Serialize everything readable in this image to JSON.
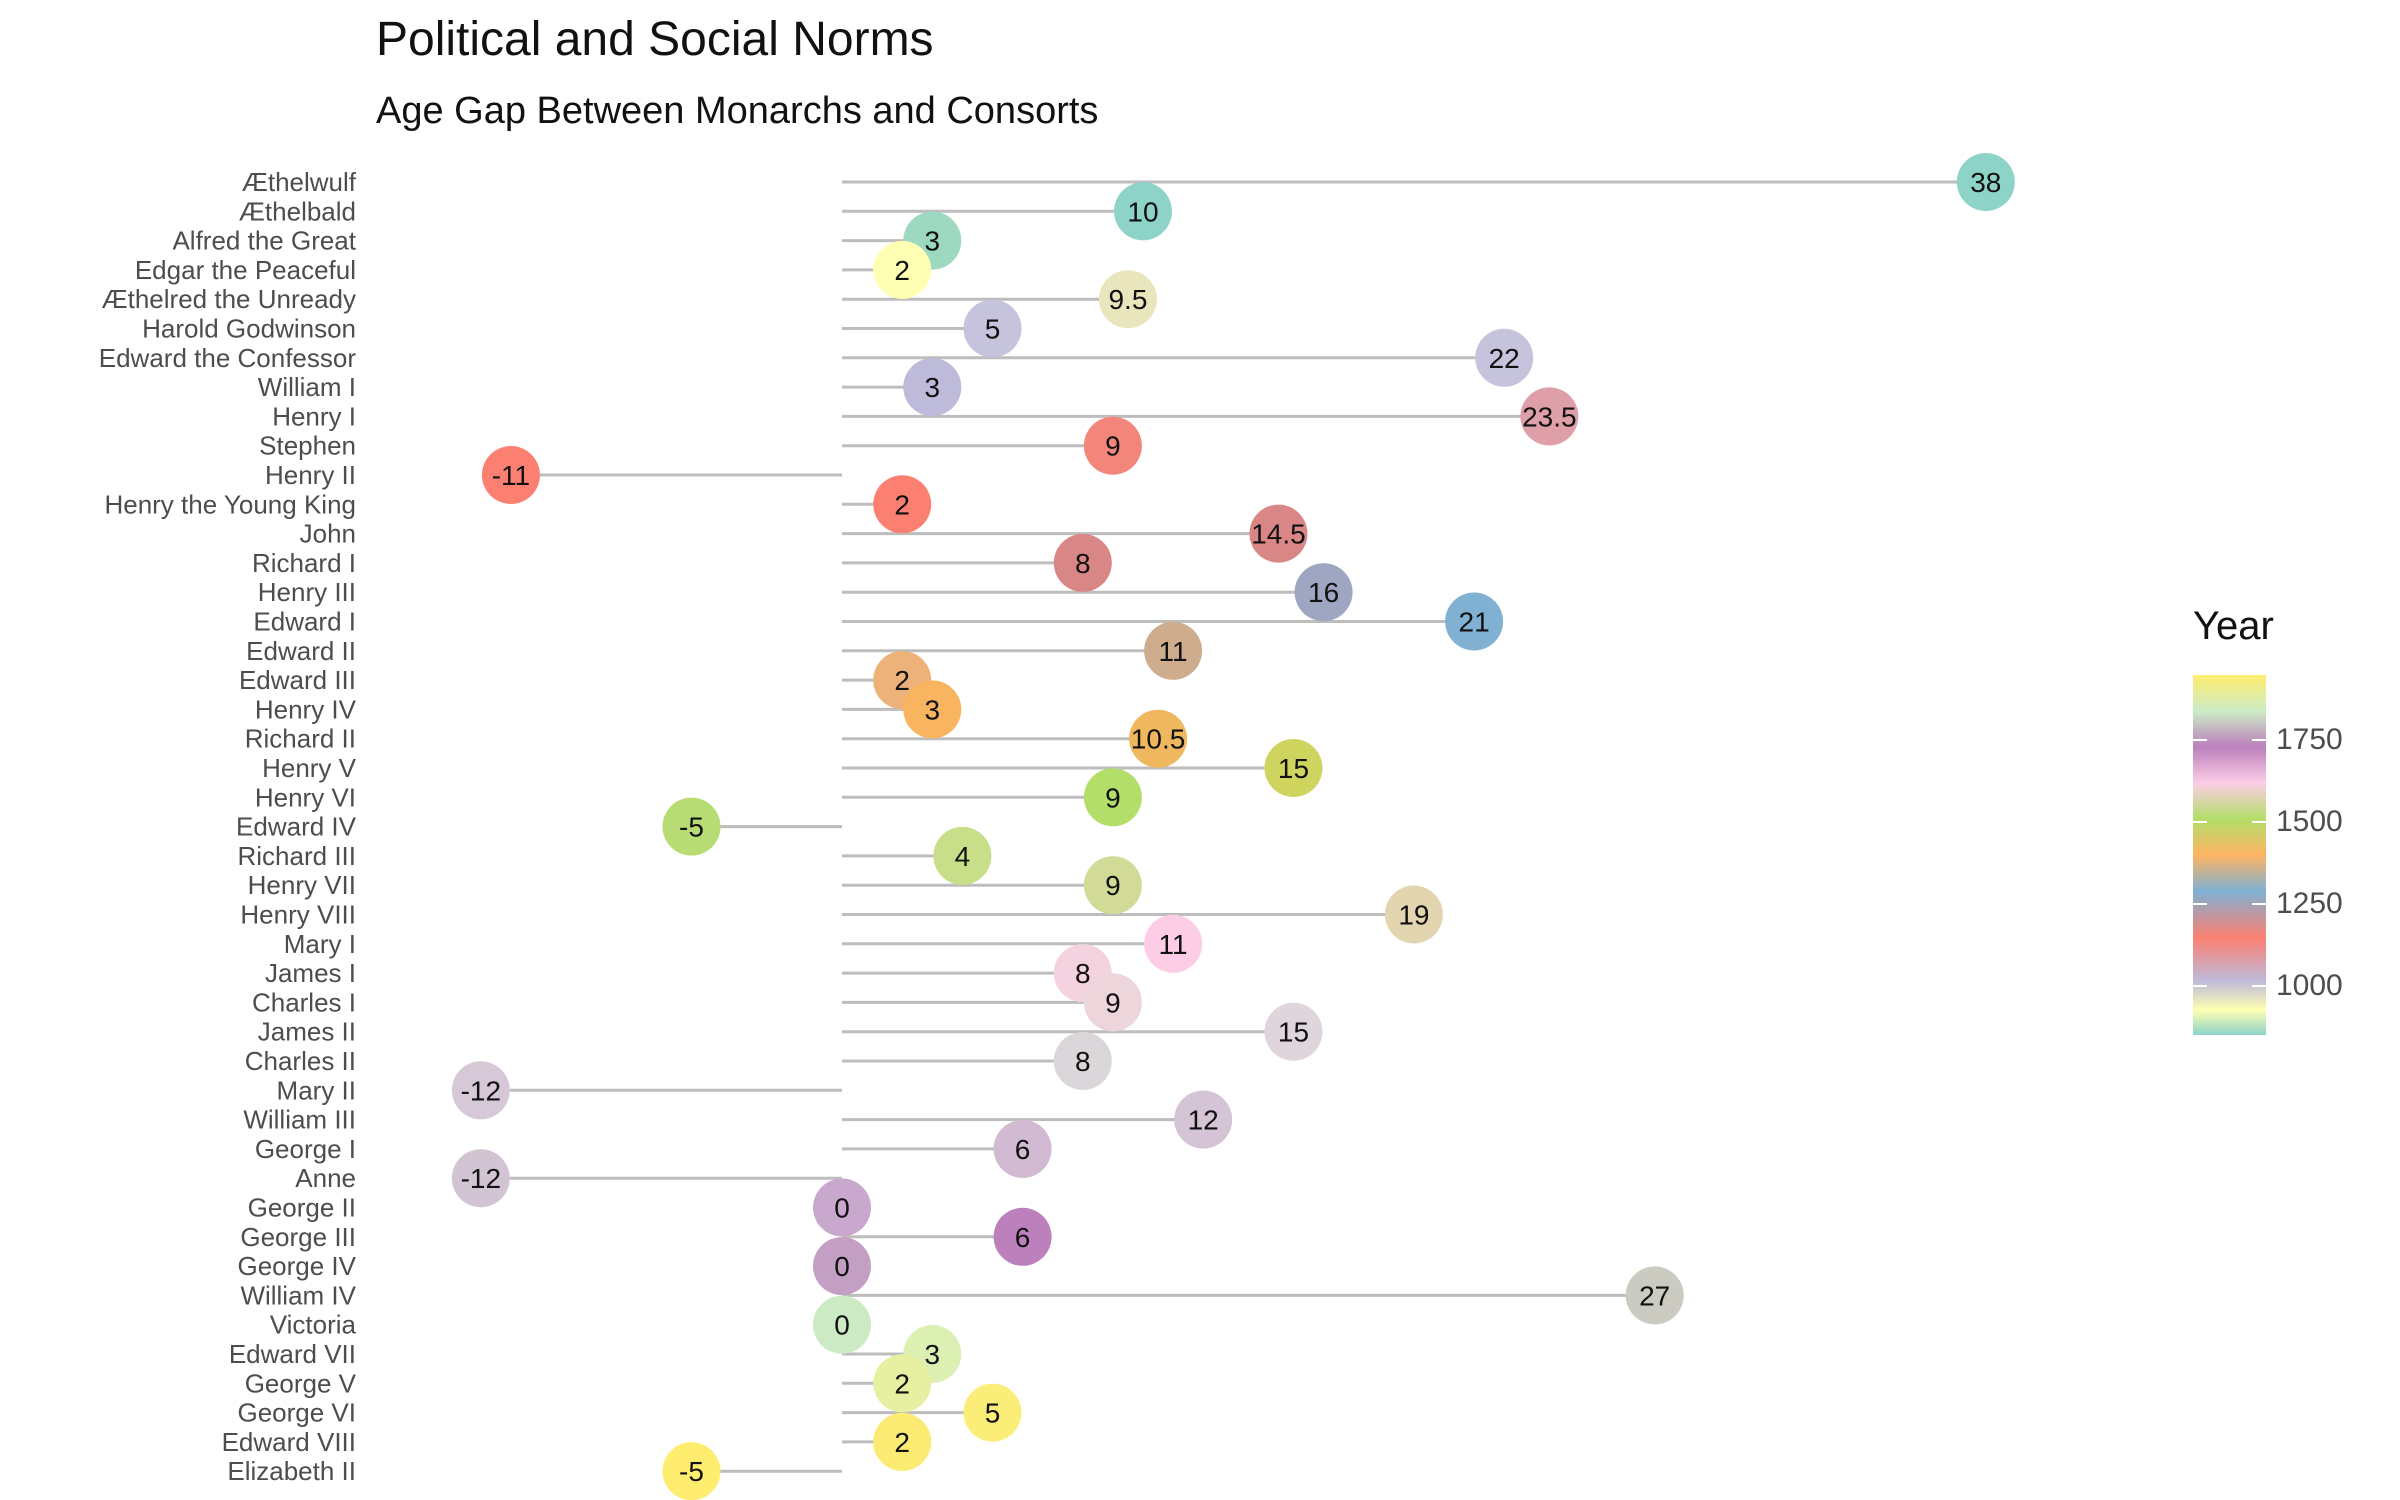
{
  "chart_data": {
    "type": "lollipop",
    "title": "Political and Social Norms",
    "subtitle": "Age Gap Between Monarchs and Consorts",
    "xlabel": "",
    "ylabel": "",
    "xlim": [
      -14,
      40
    ],
    "legend": {
      "title": "Year",
      "placement": "right",
      "ticks": [
        1000,
        1250,
        1500,
        1750
      ],
      "range": [
        850,
        1950
      ]
    },
    "palette": [
      "#8DD3C7",
      "#FFFFB3",
      "#BEBADA",
      "#FB8072",
      "#80B1D3",
      "#FDB462",
      "#B3DE69",
      "#FCCDE5",
      "#D9D9D9",
      "#BC80BD",
      "#CCEBC5",
      "#FFED6F"
    ],
    "rows": [
      {
        "name": "Æthelwulf",
        "gap": 38,
        "label": "38",
        "color": "#8DD3C7"
      },
      {
        "name": "Æthelbald",
        "gap": 10,
        "label": "10",
        "color": "#8DD3C7"
      },
      {
        "name": "Alfred the Great",
        "gap": 3,
        "label": "3",
        "color": "#9DD9C1"
      },
      {
        "name": "Edgar the Peaceful",
        "gap": 2,
        "label": "2",
        "color": "#FFFFB3"
      },
      {
        "name": "Æthelred the Unready",
        "gap": 9.5,
        "label": "9.5",
        "color": "#E9E6BE"
      },
      {
        "name": "Harold Godwinson",
        "gap": 5,
        "label": "5",
        "color": "#C6C3DC"
      },
      {
        "name": "Edward the Confessor",
        "gap": 22,
        "label": "22",
        "color": "#C6C3DC"
      },
      {
        "name": "William I",
        "gap": 3,
        "label": "3",
        "color": "#BEBADA"
      },
      {
        "name": "Henry I",
        "gap": 23.5,
        "label": "23.5",
        "color": "#DE9FA8"
      },
      {
        "name": "Stephen",
        "gap": 9,
        "label": "9",
        "color": "#F3867B"
      },
      {
        "name": "Henry II",
        "gap": -11,
        "label": "-11",
        "color": "#FB8072"
      },
      {
        "name": "Henry the Young King",
        "gap": 2,
        "label": "2",
        "color": "#FB8072"
      },
      {
        "name": "John",
        "gap": 14.5,
        "label": "14.5",
        "color": "#D98786"
      },
      {
        "name": "Richard I",
        "gap": 8,
        "label": "8",
        "color": "#D98786"
      },
      {
        "name": "Henry III",
        "gap": 16,
        "label": "16",
        "color": "#9FA6C1"
      },
      {
        "name": "Edward I",
        "gap": 21,
        "label": "21",
        "color": "#80B1D3"
      },
      {
        "name": "Edward II",
        "gap": 11,
        "label": "11",
        "color": "#CDAD8E"
      },
      {
        "name": "Edward III",
        "gap": 2,
        "label": "2",
        "color": "#EDB27A"
      },
      {
        "name": "Henry IV",
        "gap": 3,
        "label": "3",
        "color": "#F8B45E"
      },
      {
        "name": "Richard II",
        "gap": 10.5,
        "label": "10.5",
        "color": "#F0B85E"
      },
      {
        "name": "Henry V",
        "gap": 15,
        "label": "15",
        "color": "#CFD45E"
      },
      {
        "name": "Henry VI",
        "gap": 9,
        "label": "9",
        "color": "#B3DE69"
      },
      {
        "name": "Edward IV",
        "gap": -5,
        "label": "-5",
        "color": "#B8DC74"
      },
      {
        "name": "Richard III",
        "gap": 4,
        "label": "4",
        "color": "#C8DE88"
      },
      {
        "name": "Henry VII",
        "gap": 9,
        "label": "9",
        "color": "#D2DA98"
      },
      {
        "name": "Henry VIII",
        "gap": 19,
        "label": "19",
        "color": "#E3D5B0"
      },
      {
        "name": "Mary I",
        "gap": 11,
        "label": "11",
        "color": "#FCCDE5"
      },
      {
        "name": "James I",
        "gap": 8,
        "label": "8",
        "color": "#F5D2DF"
      },
      {
        "name": "Charles I",
        "gap": 9,
        "label": "9",
        "color": "#EDD5DC"
      },
      {
        "name": "James II",
        "gap": 15,
        "label": "15",
        "color": "#DED6DC"
      },
      {
        "name": "Charles II",
        "gap": 8,
        "label": "8",
        "color": "#DAD6DA"
      },
      {
        "name": "Mary II",
        "gap": -12,
        "label": "-12",
        "color": "#D7C8D7"
      },
      {
        "name": "William III",
        "gap": 12,
        "label": "12",
        "color": "#D5C4D5"
      },
      {
        "name": "George I",
        "gap": 6,
        "label": "6",
        "color": "#D2BAD2"
      },
      {
        "name": "Anne",
        "gap": -12,
        "label": "-12",
        "color": "#D3C4D3"
      },
      {
        "name": "George II",
        "gap": 0,
        "label": "0",
        "color": "#C8A8CD"
      },
      {
        "name": "George III",
        "gap": 6,
        "label": "6",
        "color": "#BC80BD"
      },
      {
        "name": "George IV",
        "gap": 0,
        "label": "0",
        "color": "#C3A0C3"
      },
      {
        "name": "William IV",
        "gap": 27,
        "label": "27",
        "color": "#CBCBC2"
      },
      {
        "name": "Victoria",
        "gap": 0,
        "label": "0",
        "color": "#CCEBC5"
      },
      {
        "name": "Edward VII",
        "gap": 3,
        "label": "3",
        "color": "#DDF0B4"
      },
      {
        "name": "George V",
        "gap": 2,
        "label": "2",
        "color": "#E7F0A0"
      },
      {
        "name": "George VI",
        "gap": 5,
        "label": "5",
        "color": "#FBEE78"
      },
      {
        "name": "Edward VIII",
        "gap": 2,
        "label": "2",
        "color": "#FBEB73"
      },
      {
        "name": "Elizabeth II",
        "gap": -5,
        "label": "-5",
        "color": "#FFED6F"
      }
    ]
  }
}
